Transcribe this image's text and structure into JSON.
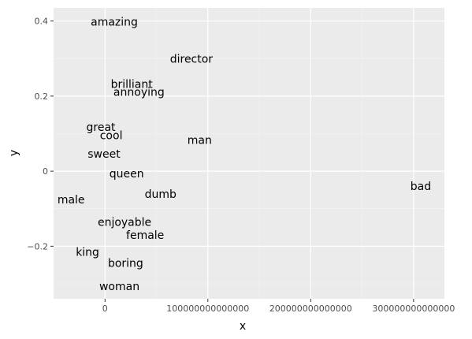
{
  "chart_data": {
    "type": "scatter",
    "title": "",
    "xlabel": "x",
    "ylabel": "y",
    "xlim": [
      -50000000000000,
      330000000000000
    ],
    "ylim": [
      -0.34,
      0.435
    ],
    "grid": true,
    "x_ticks": [
      0,
      100000000000000,
      200000000000000,
      300000000000000
    ],
    "x_tick_labels": [
      "0",
      "100000000000000",
      "200000000000000",
      "300000000000000"
    ],
    "y_ticks": [
      -0.2,
      0,
      0.2,
      0.4
    ],
    "y_tick_labels": [
      "−0.2",
      "0",
      "0.2",
      "0.4"
    ],
    "points": [
      {
        "label": "amazing",
        "x": 9000000000000,
        "y": 0.398
      },
      {
        "label": "director",
        "x": 84000000000000,
        "y": 0.3
      },
      {
        "label": "brilliant",
        "x": 26000000000000,
        "y": 0.232
      },
      {
        "label": "annoying",
        "x": 33000000000000,
        "y": 0.211
      },
      {
        "label": "great",
        "x": -4000000000000,
        "y": 0.118
      },
      {
        "label": "cool",
        "x": 6000000000000,
        "y": 0.096
      },
      {
        "label": "man",
        "x": 92000000000000,
        "y": 0.083
      },
      {
        "label": "sweet",
        "x": -1000000000000,
        "y": 0.046
      },
      {
        "label": "queen",
        "x": 21000000000000,
        "y": -0.006
      },
      {
        "label": "bad",
        "x": 307000000000000,
        "y": -0.04
      },
      {
        "label": "dumb",
        "x": 54000000000000,
        "y": -0.061
      },
      {
        "label": "male",
        "x": -33000000000000,
        "y": -0.075
      },
      {
        "label": "enjoyable",
        "x": 19000000000000,
        "y": -0.135
      },
      {
        "label": "female",
        "x": 39000000000000,
        "y": -0.17
      },
      {
        "label": "king",
        "x": -17000000000000,
        "y": -0.215
      },
      {
        "label": "boring",
        "x": 20000000000000,
        "y": -0.244
      },
      {
        "label": "woman",
        "x": 14000000000000,
        "y": -0.306
      }
    ]
  }
}
